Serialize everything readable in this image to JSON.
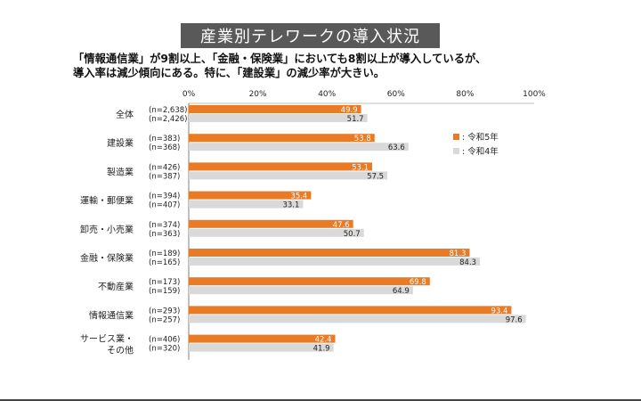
{
  "title": "産業別テレワークの導入状況",
  "subtitle": {
    "line1": "「情報通信業」が9割以上、「金融・保険業」においても8割以上が導入しているが、",
    "line2": "導入率は減少傾向にある。特に、「建設業」の減少率が大きい。"
  },
  "colors": {
    "series_r5": "#e97b26",
    "series_r4": "#d9d9d9",
    "title_bg": "#595959"
  },
  "chart_data": {
    "type": "bar",
    "orientation": "horizontal",
    "xlim": [
      0,
      100
    ],
    "ticks": [
      "0%",
      "20%",
      "40%",
      "60%",
      "80%",
      "100%"
    ],
    "tick_values": [
      0,
      20,
      40,
      60,
      80,
      100
    ],
    "legend_position": "right",
    "categories": [
      {
        "label": [
          "全体"
        ],
        "n_r5": "(n=2,638)",
        "n_r4": "(n=2,426)"
      },
      {
        "label": [
          "建設業"
        ],
        "n_r5": "(n=383)",
        "n_r4": "(n=368)"
      },
      {
        "label": [
          "製造業"
        ],
        "n_r5": "(n=426)",
        "n_r4": "(n=387)"
      },
      {
        "label": [
          "運輸・郵便業"
        ],
        "n_r5": "(n=394)",
        "n_r4": "(n=407)"
      },
      {
        "label": [
          "卸売・小売業"
        ],
        "n_r5": "(n=374)",
        "n_r4": "(n=363)"
      },
      {
        "label": [
          "金融・保険業"
        ],
        "n_r5": "(n=189)",
        "n_r4": "(n=165)"
      },
      {
        "label": [
          "不動産業"
        ],
        "n_r5": "(n=173)",
        "n_r4": "(n=159)"
      },
      {
        "label": [
          "情報通信業"
        ],
        "n_r5": "(n=293)",
        "n_r4": "(n=257)"
      },
      {
        "label": [
          "サービス業・",
          "その他"
        ],
        "n_r5": "(n=406)",
        "n_r4": "(n=320)"
      }
    ],
    "series": [
      {
        "name": "令和5年",
        "legend": ": 令和5年",
        "values": [
          49.9,
          53.8,
          53.1,
          35.4,
          47.6,
          81.3,
          69.8,
          93.4,
          42.4
        ]
      },
      {
        "name": "令和4年",
        "legend": ": 令和4年",
        "values": [
          51.7,
          63.6,
          57.5,
          33.1,
          50.7,
          84.3,
          64.9,
          97.6,
          41.9
        ]
      }
    ]
  }
}
